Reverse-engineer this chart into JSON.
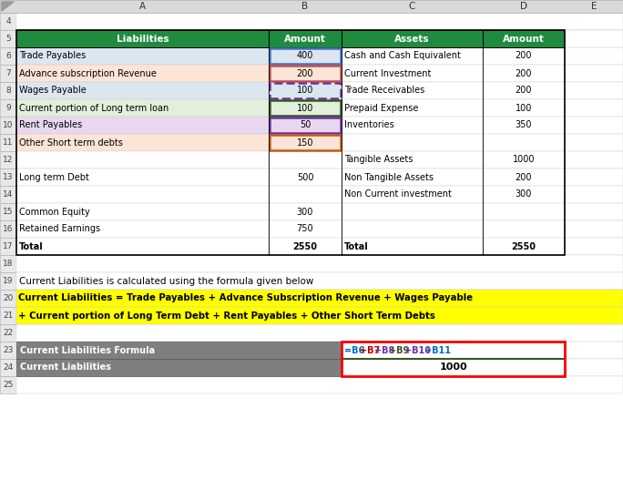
{
  "header_row": {
    "liabilities_label": "Liabilities",
    "liabilities_amount": "Amount",
    "assets_label": "Assets",
    "assets_amount": "Amount",
    "bg_color": "#1e8b3f",
    "text_color": "#ffffff"
  },
  "data_rows": [
    {
      "row": 6,
      "liab": "Trade Payables",
      "liab_amt": "400",
      "asset": "Cash and Cash Equivalent",
      "asset_amt": "200",
      "liab_bg": "#dce6f1",
      "liab_border": "#4472c4",
      "border_style": "solid"
    },
    {
      "row": 7,
      "liab": "Advance subscription Revenue",
      "liab_amt": "200",
      "asset": "Current Investment",
      "asset_amt": "200",
      "liab_bg": "#fce4d6",
      "liab_border": "#c0504d",
      "border_style": "solid"
    },
    {
      "row": 8,
      "liab": "Wages Payable",
      "liab_amt": "100",
      "asset": "Trade Receivables",
      "asset_amt": "200",
      "liab_bg": "#dce6f1",
      "liab_border": "#7030a0",
      "border_style": "dashed"
    },
    {
      "row": 9,
      "liab": "Current portion of Long term loan",
      "liab_amt": "100",
      "asset": "Prepaid Expense",
      "asset_amt": "100",
      "liab_bg": "#e2efda",
      "liab_border": "#375623",
      "border_style": "solid"
    },
    {
      "row": 10,
      "liab": "Rent Payables",
      "liab_amt": "50",
      "asset": "Inventories",
      "asset_amt": "350",
      "liab_bg": "#e9d7f0",
      "liab_border": "#7030a0",
      "border_style": "solid"
    },
    {
      "row": 11,
      "liab": "Other Short term debts",
      "liab_amt": "150",
      "asset": "",
      "asset_amt": "",
      "liab_bg": "#fce4d6",
      "liab_border": "#c55a11",
      "border_style": "solid"
    },
    {
      "row": 12,
      "liab": "",
      "liab_amt": "",
      "asset": "Tangible Assets",
      "asset_amt": "1000",
      "liab_bg": null,
      "liab_border": null,
      "border_style": null
    },
    {
      "row": 13,
      "liab": "Long term Debt",
      "liab_amt": "500",
      "asset": "Non Tangible Assets",
      "asset_amt": "200",
      "liab_bg": null,
      "liab_border": null,
      "border_style": null
    },
    {
      "row": 14,
      "liab": "",
      "liab_amt": "",
      "asset": "Non Current investment",
      "asset_amt": "300",
      "liab_bg": null,
      "liab_border": null,
      "border_style": null
    },
    {
      "row": 15,
      "liab": "Common Equity",
      "liab_amt": "300",
      "asset": "",
      "asset_amt": "",
      "liab_bg": null,
      "liab_border": null,
      "border_style": null
    },
    {
      "row": 16,
      "liab": "Retained Earnings",
      "liab_amt": "750",
      "asset": "",
      "asset_amt": "",
      "liab_bg": null,
      "liab_border": null,
      "border_style": null
    },
    {
      "row": 17,
      "liab": "Total",
      "liab_amt": "2550",
      "asset": "Total",
      "asset_amt": "2550",
      "liab_bg": null,
      "liab_border": null,
      "border_style": null,
      "bold": true
    }
  ],
  "formula_parts": [
    [
      "=B6",
      "#0070c0"
    ],
    [
      "+B7",
      "#c00000"
    ],
    [
      "+B8",
      "#7030a0"
    ],
    [
      "+B9",
      "#375623"
    ],
    [
      "+B10",
      "#7030a0"
    ],
    [
      "+B11",
      "#0070c0"
    ]
  ],
  "row19_text": "Current Liabilities is calculated using the formula given below",
  "row20_text": "Current Liabilities = Trade Payables + Advance Subscription Revenue + Wages Payable",
  "row21_text": "+ Current portion of Long Term Debt + Rent Payables + Other Short Term Debts",
  "yellow_bg": "#ffff00",
  "row23_label": "Current Liabilities Formula",
  "row24_label": "Current Liabilities",
  "row24_value": "1000",
  "gray_bg": "#7f7f7f",
  "red_border": "#ff0000",
  "green_underline": "#375623",
  "col_hdr_bg": "#d9d9d9",
  "row_num_bg": "#e8e8e8"
}
